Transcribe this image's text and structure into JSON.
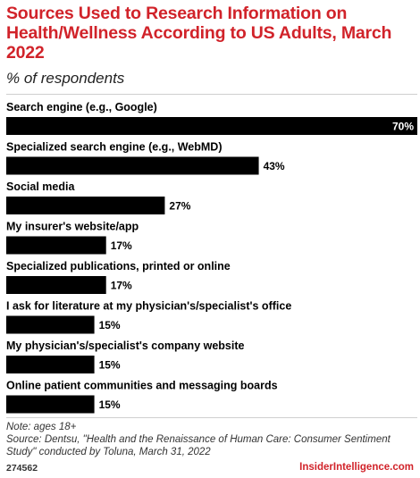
{
  "header": {
    "title": "Sources Used to Research Information on Health/Wellness According to US Adults, March 2022",
    "subtitle": "% of respondents"
  },
  "chart_data": {
    "type": "bar",
    "orientation": "horizontal",
    "categories": [
      "Search engine (e.g., Google)",
      "Specialized search engine (e.g., WebMD)",
      "Social media",
      "My insurer's website/app",
      "Specialized publications, printed or online",
      "I ask for literature at my physician's/specialist's office",
      "My physician's/specialist's company website",
      "Online patient communities and messaging boards"
    ],
    "values": [
      70,
      43,
      27,
      17,
      17,
      15,
      15,
      15
    ],
    "value_labels": [
      "70%",
      "43%",
      "27%",
      "17%",
      "17%",
      "15%",
      "15%",
      "15%"
    ],
    "xlim": [
      0,
      70
    ],
    "bar_color": "#000000",
    "grid": false
  },
  "footer": {
    "note": "Note: ages 18+",
    "source": "Source: Dentsu, \"Health and the Renaissance of Human Care: Consumer Sentiment Study\" conducted by Toluna, March 31, 2022",
    "chart_id": "274562",
    "brand": "InsiderIntelligence.com"
  },
  "colors": {
    "accent": "#d1232a",
    "bar": "#000000",
    "label_inside": "#ffffff"
  }
}
